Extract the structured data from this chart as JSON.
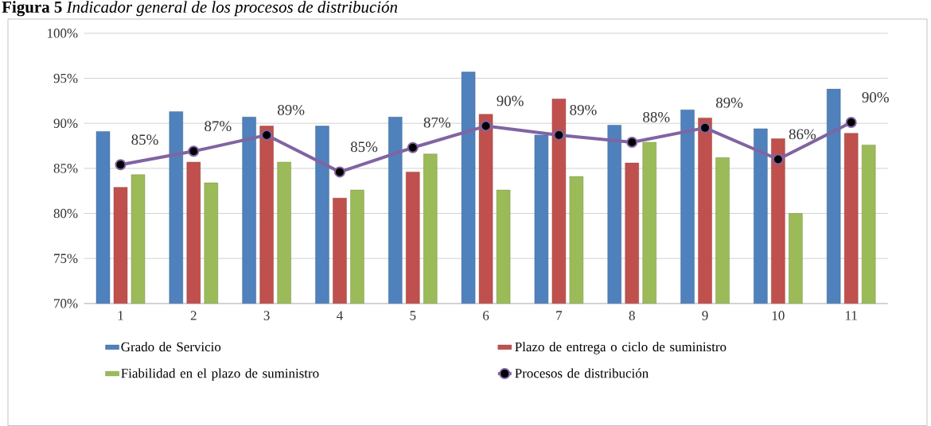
{
  "chart_data": {
    "type": "bar",
    "title": "**Figura 5** *Indicador general de los procesos de distribución*",
    "categories": [
      "1",
      "2",
      "3",
      "4",
      "5",
      "6",
      "7",
      "8",
      "9",
      "10",
      "11"
    ],
    "series": [
      {
        "name": "Grado de Servicio",
        "color": "#4f81bd",
        "values": [
          89.1,
          91.3,
          90.7,
          89.7,
          90.7,
          95.7,
          88.7,
          89.8,
          91.5,
          89.4,
          93.8
        ]
      },
      {
        "name": "Plazo de entrega o ciclo de suministro",
        "color": "#c0504d",
        "values": [
          82.9,
          85.7,
          89.7,
          81.7,
          84.6,
          91.0,
          92.7,
          85.6,
          90.6,
          88.3,
          88.9
        ]
      },
      {
        "name": "Fiabilidad en el plazo de suministro",
        "color": "#9bbb59",
        "values": [
          84.3,
          83.4,
          85.7,
          82.6,
          86.6,
          82.6,
          84.1,
          87.9,
          86.2,
          80.0,
          87.6
        ]
      },
      {
        "name": "Procesos de distribución",
        "type": "line",
        "color": "#8064a2",
        "marker": "circle",
        "values": [
          85.4,
          86.9,
          88.7,
          84.6,
          87.3,
          89.7,
          88.7,
          87.9,
          89.5,
          86.0,
          90.1
        ],
        "value_labels": [
          "85%",
          "87%",
          "89%",
          "85%",
          "87%",
          "90%",
          "89%",
          "88%",
          "89%",
          "86%",
          "90%"
        ]
      }
    ],
    "ylim": [
      70,
      100
    ],
    "yticks": [
      {
        "value": 70,
        "label": "70%"
      },
      {
        "value": 75,
        "label": "75%"
      },
      {
        "value": 80,
        "label": "80%"
      },
      {
        "value": 85,
        "label": "85%"
      },
      {
        "value": 90,
        "label": "90%"
      },
      {
        "value": 95,
        "label": "95%"
      },
      {
        "value": 100,
        "label": "100%"
      }
    ],
    "grid": "y",
    "legend": "bottom"
  }
}
